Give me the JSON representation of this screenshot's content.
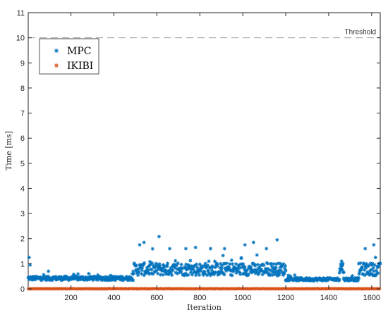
{
  "chart_data": {
    "type": "scatter",
    "title": "",
    "xlabel": "Iteration",
    "ylabel": "Time [ms]",
    "xlim": [
      1,
      1640
    ],
    "ylim": [
      0,
      11
    ],
    "xticks": [
      200,
      400,
      600,
      800,
      1000,
      1200,
      1400,
      1600
    ],
    "yticks": [
      0,
      1,
      2,
      3,
      4,
      5,
      6,
      7,
      8,
      9,
      10,
      11
    ],
    "grid": false,
    "legend_position": "top-left",
    "threshold": {
      "value": 10,
      "label": "Threshold",
      "color": "#999999"
    },
    "series": [
      {
        "name": "MPC",
        "marker": "asterisk",
        "color": "#0072BD",
        "segments": [
          {
            "x_range": [
              1,
              490
            ],
            "baseline": 0.42,
            "spread": 0.08
          },
          {
            "x_range": [
              490,
              1200
            ],
            "baseline": 0.78,
            "spread": 0.25
          },
          {
            "x_range": [
              1200,
              1450
            ],
            "baseline": 0.38,
            "spread": 0.06
          },
          {
            "x_range": [
              1450,
              1470
            ],
            "baseline": 0.85,
            "spread": 0.25
          },
          {
            "x_range": [
              1470,
              1540
            ],
            "baseline": 0.38,
            "spread": 0.06
          },
          {
            "x_range": [
              1540,
              1640
            ],
            "baseline": 0.78,
            "spread": 0.25
          }
        ],
        "peaks": [
          {
            "x": 5,
            "y": 1.25
          },
          {
            "x": 10,
            "y": 0.95
          },
          {
            "x": 95,
            "y": 0.7
          },
          {
            "x": 520,
            "y": 1.75
          },
          {
            "x": 540,
            "y": 1.85
          },
          {
            "x": 610,
            "y": 2.08
          },
          {
            "x": 660,
            "y": 1.6
          },
          {
            "x": 735,
            "y": 1.6
          },
          {
            "x": 780,
            "y": 1.65
          },
          {
            "x": 850,
            "y": 1.6
          },
          {
            "x": 915,
            "y": 1.6
          },
          {
            "x": 1010,
            "y": 1.75
          },
          {
            "x": 1050,
            "y": 1.85
          },
          {
            "x": 1110,
            "y": 1.6
          },
          {
            "x": 1160,
            "y": 1.95
          },
          {
            "x": 1460,
            "y": 1.1
          },
          {
            "x": 1570,
            "y": 1.6
          },
          {
            "x": 1610,
            "y": 1.75
          }
        ]
      },
      {
        "name": "IKIBI",
        "marker": "asterisk",
        "color": "#D95319",
        "segments": [
          {
            "x_range": [
              1,
              1640
            ],
            "baseline": 0.0,
            "spread": 0.01
          }
        ],
        "peaks": []
      }
    ]
  }
}
